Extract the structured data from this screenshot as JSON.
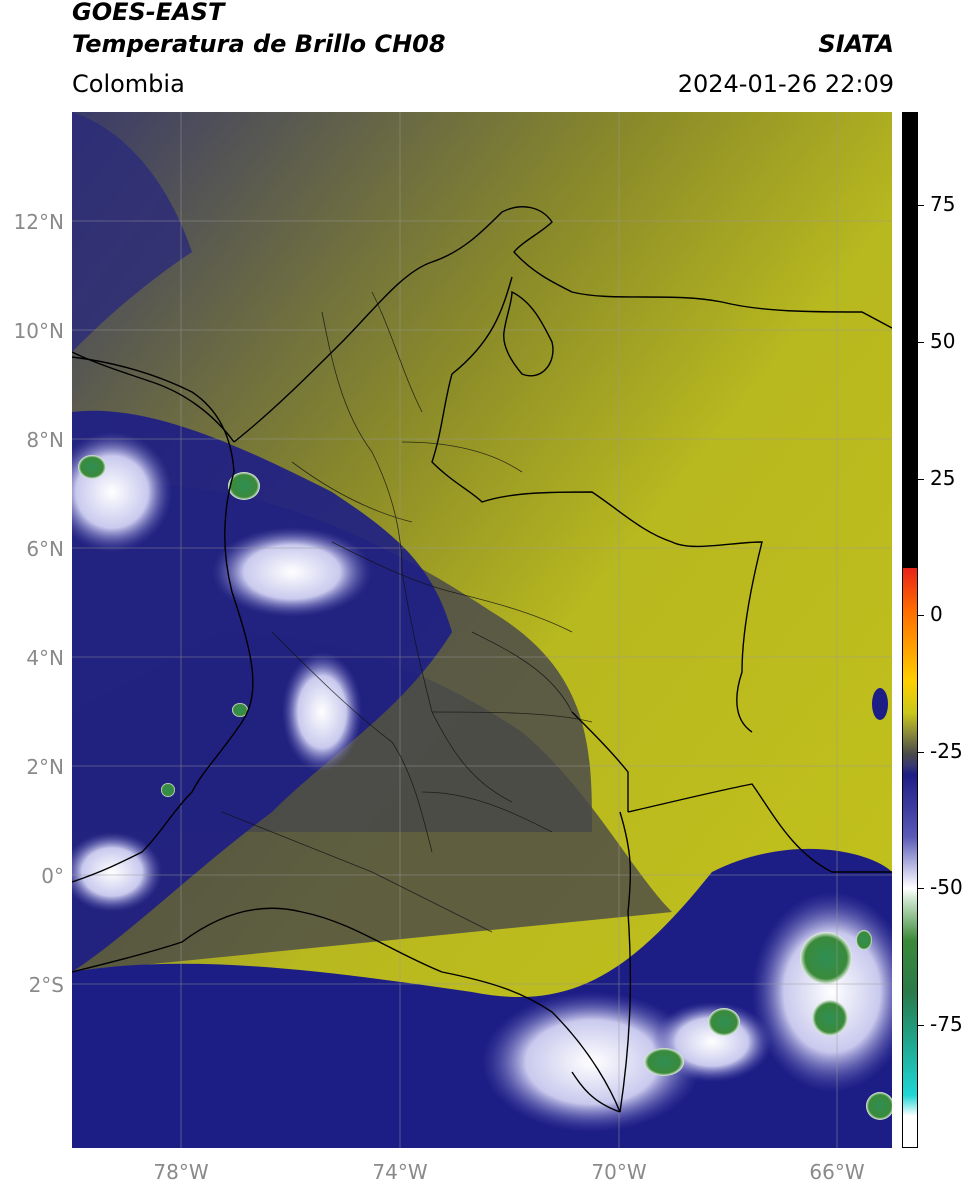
{
  "header": {
    "satellite": "GOES-EAST",
    "product": "Temperatura de Brillo CH08",
    "agency": "SIATA",
    "region": "Colombia",
    "datetime": "2024-01-26 22:09"
  },
  "map": {
    "lat_ticks": [
      "12°N",
      "10°N",
      "8°N",
      "6°N",
      "4°N",
      "2°N",
      "0°",
      "2°S"
    ],
    "lon_ticks": [
      "78°W",
      "74°W",
      "70°W",
      "66°W"
    ],
    "extent_lon": [
      -80,
      -65
    ],
    "extent_lat": [
      -5,
      14
    ]
  },
  "colorbar": {
    "ticks": [
      "75",
      "50",
      "25",
      "0",
      "-25",
      "-50",
      "-75"
    ],
    "range": [
      -95,
      90
    ],
    "colors": {
      "warm": "#000000",
      "red": "#e8231a",
      "yellow": "#c9c71a",
      "gray": "#4a4a4a",
      "navy": "#1d1d86",
      "white": "#ffffff",
      "green": "#3a8a3a",
      "cyan": "#1fd6d6"
    }
  }
}
